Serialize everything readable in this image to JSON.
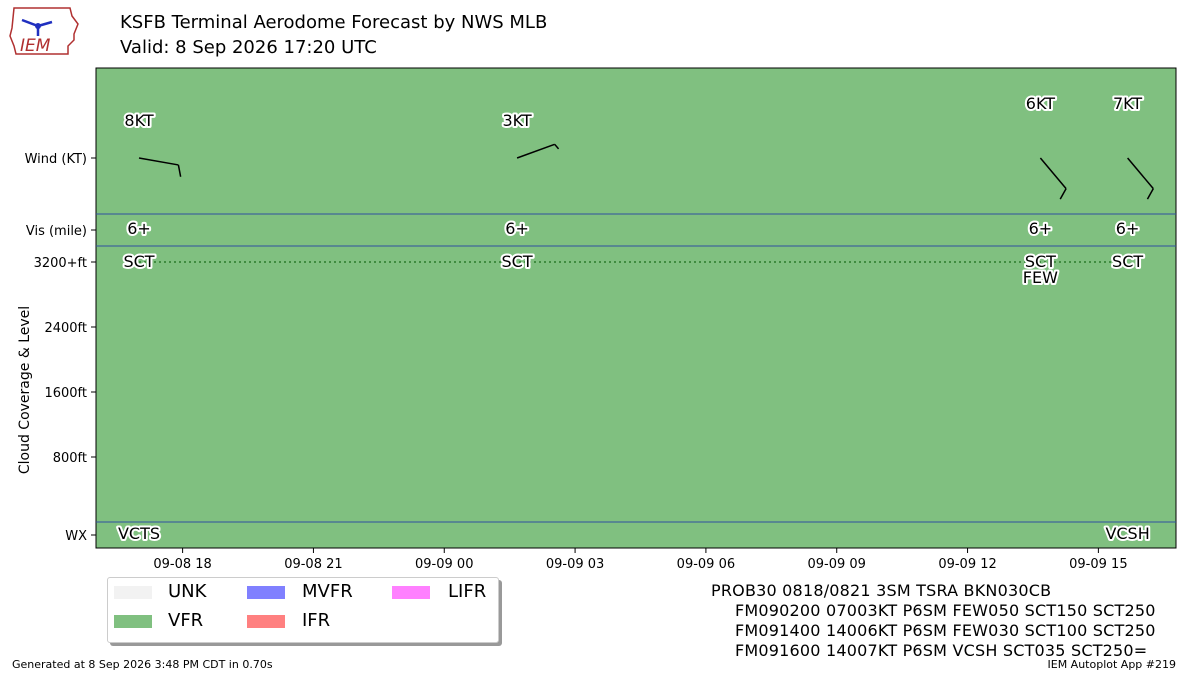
{
  "header": {
    "title": "KSFB Terminal Aerodome Forecast by NWS MLB",
    "subtitle": "Valid: 8 Sep 2026 17:20 UTC",
    "logo_text": "IEM"
  },
  "footer": {
    "generated": "Generated at 8 Sep 2026 3:48 PM CDT in 0.70s",
    "app": "IEM Autoplot App #219"
  },
  "taf_lines": [
    "PROB30 0818/0821 3SM TSRA BKN030CB",
    "FM090200 07003KT P6SM FEW050 SCT150 SCT250",
    "FM091400 14006KT P6SM FEW030 SCT100 SCT250",
    "FM091600 14007KT P6SM VCSH SCT035 SCT250="
  ],
  "legend": [
    {
      "label": "UNK",
      "color": "#f2f2f2"
    },
    {
      "label": "VFR",
      "color": "#80c080"
    },
    {
      "label": "MVFR",
      "color": "#8080ff"
    },
    {
      "label": "IFR",
      "color": "#ff8080"
    },
    {
      "label": "LIFR",
      "color": "#ff80ff"
    }
  ],
  "chart_data": {
    "type": "timeline",
    "ylabel": "Cloud Coverage & Level",
    "row_labels": {
      "wind": "Wind (KT)",
      "vis": "Vis (mile)",
      "wx": "WX"
    },
    "cloud_ticks": [
      {
        "level": 800,
        "label": "800ft"
      },
      {
        "level": 1600,
        "label": "1600ft"
      },
      {
        "level": 2400,
        "label": "2400ft"
      },
      {
        "level": 3200,
        "label": "3200+ft"
      }
    ],
    "x_ticks": [
      {
        "hour": 1,
        "label": "09-08 18"
      },
      {
        "hour": 4,
        "label": "09-08 21"
      },
      {
        "hour": 7,
        "label": "09-09 00"
      },
      {
        "hour": 10,
        "label": "09-09 03"
      },
      {
        "hour": 13,
        "label": "09-09 06"
      },
      {
        "hour": 16,
        "label": "09-09 09"
      },
      {
        "hour": 19,
        "label": "09-09 12"
      },
      {
        "hour": 22,
        "label": "09-09 15"
      }
    ],
    "xlim_hours": [
      -0.0,
      23.78
    ],
    "background_category": "VFR",
    "forecasts": [
      {
        "hour": 0.0,
        "wind_dir": 100,
        "wind_speed": 8,
        "wind_label": "8KT",
        "vis_label": "6+",
        "clouds": [
          {
            "cover": "SCT",
            "level": 3200
          }
        ],
        "wx": "VCTS"
      },
      {
        "hour": 8.67,
        "wind_dir": 70,
        "wind_speed": 3,
        "wind_label": "3KT",
        "vis_label": "6+",
        "clouds": [
          {
            "cover": "SCT",
            "level": 3200
          }
        ],
        "wx": ""
      },
      {
        "hour": 20.67,
        "wind_dir": 140,
        "wind_speed": 6,
        "wind_label": "6KT",
        "vis_label": "6+",
        "clouds": [
          {
            "cover": "SCT",
            "level": 3200
          },
          {
            "cover": "FEW",
            "level": 3000
          }
        ],
        "wx": ""
      },
      {
        "hour": 22.67,
        "wind_dir": 140,
        "wind_speed": 7,
        "wind_label": "7KT",
        "vis_label": "6+",
        "clouds": [
          {
            "cover": "SCT",
            "level": 3200
          }
        ],
        "wx": "VCSH"
      }
    ]
  }
}
